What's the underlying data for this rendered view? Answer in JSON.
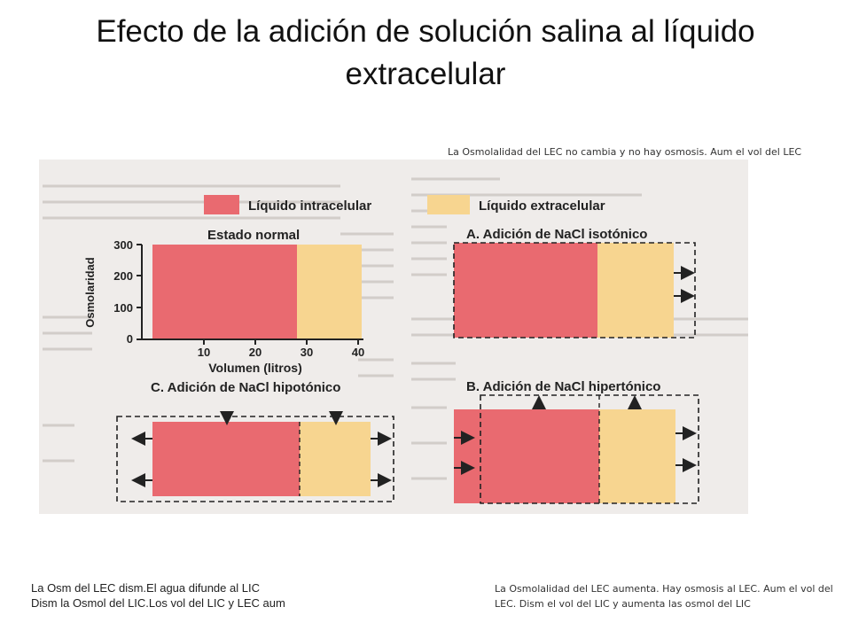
{
  "slide": {
    "title": "Efecto de la adición de solución salina al líquido extracelular"
  },
  "notes": {
    "top_right": "La Osmolalidad del LEC no cambia y no hay osmosis. Aum el vol del LEC",
    "bottom_left_line1": "La Osm del LEC  dism.El agua difunde al LIC",
    "bottom_left_line2": "Dism la Osmol del LIC.Los vol del LIC y LEC aum",
    "bottom_right": "La Osmolalidad del LEC aumenta. Hay osmosis al LEC. Aum el vol del LEC. Dism el vol del LIC y aumenta las osmol del LIC"
  },
  "figure": {
    "legend": {
      "icf": "Líquido intracelular",
      "ecf": "Líquido extracelular"
    },
    "colors": {
      "icf": "#e96a70",
      "ecf": "#f7d590",
      "background": "#efecea",
      "text_gray": "#c9c4c0"
    },
    "panels": {
      "normal": "Estado normal",
      "a": "A. Adición de NaCl isotónico",
      "b": "B. Adición de NaCl hipertónico",
      "c": "C. Adición de NaCl hipotónico"
    },
    "axes": {
      "y_label": "Osmolaridad",
      "y_ticks": [
        "0",
        "100",
        "200",
        "300"
      ],
      "x_label": "Volumen (litros)",
      "x_ticks": [
        "10",
        "20",
        "30",
        "40"
      ]
    },
    "icons": [
      "arrow-right-icon",
      "arrow-left-icon",
      "arrow-up-icon",
      "arrow-down-icon"
    ]
  }
}
